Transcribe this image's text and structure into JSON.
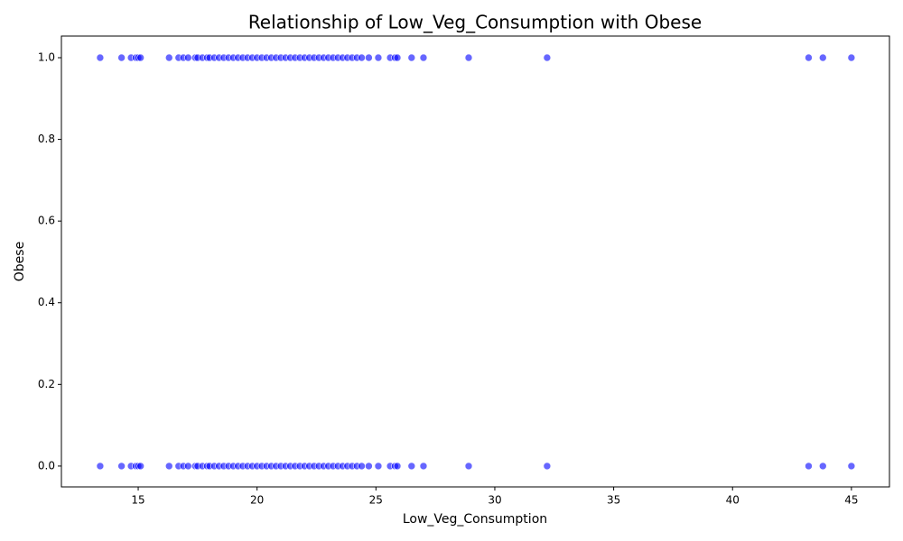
{
  "chart_data": {
    "type": "scatter",
    "title": "Relationship of Low_Veg_Consumption with Obese",
    "x_label": "Low_Veg_Consumption",
    "y_label": "Obese",
    "color": "#0000ff",
    "x": [
      13.4,
      14.3,
      14.7,
      14.9,
      15.0,
      15.1,
      16.3,
      16.7,
      16.9,
      17.1,
      17.4,
      17.5,
      17.7,
      17.9,
      18.0,
      18.2,
      18.4,
      18.6,
      18.8,
      19.0,
      19.2,
      19.4,
      19.6,
      19.8,
      20.0,
      20.2,
      20.4,
      20.6,
      20.8,
      21.0,
      21.2,
      21.4,
      21.6,
      21.8,
      22.0,
      22.2,
      22.4,
      22.6,
      22.8,
      23.0,
      23.2,
      23.4,
      23.6,
      23.8,
      24.0,
      24.2,
      24.4,
      24.7,
      25.1,
      25.6,
      25.8,
      25.9,
      26.5,
      27.0,
      28.9,
      32.2,
      43.2,
      43.8,
      45.0,
      13.4,
      14.3,
      14.7,
      14.9,
      15.0,
      15.1,
      16.3,
      16.7,
      16.9,
      17.1,
      17.4,
      17.5,
      17.7,
      17.9,
      18.0,
      18.2,
      18.4,
      18.6,
      18.8,
      19.0,
      19.2,
      19.4,
      19.6,
      19.8,
      20.0,
      20.2,
      20.4,
      20.6,
      20.8,
      21.0,
      21.2,
      21.4,
      21.6,
      21.8,
      22.0,
      22.2,
      22.4,
      22.6,
      22.8,
      23.0,
      23.2,
      23.4,
      23.6,
      23.8,
      24.0,
      24.2,
      24.4,
      24.7,
      25.1,
      25.6,
      25.8,
      25.9,
      26.5,
      27.0,
      28.9,
      32.2,
      43.2,
      43.8,
      45.0
    ],
    "values": [
      1,
      1,
      1,
      1,
      1,
      1,
      1,
      1,
      1,
      1,
      1,
      1,
      1,
      1,
      1,
      1,
      1,
      1,
      1,
      1,
      1,
      1,
      1,
      1,
      1,
      1,
      1,
      1,
      1,
      1,
      1,
      1,
      1,
      1,
      1,
      1,
      1,
      1,
      1,
      1,
      1,
      1,
      1,
      1,
      1,
      1,
      1,
      1,
      1,
      1,
      1,
      1,
      1,
      1,
      1,
      1,
      1,
      1,
      1,
      0,
      0,
      0,
      0,
      0,
      0,
      0,
      0,
      0,
      0,
      0,
      0,
      0,
      0,
      0,
      0,
      0,
      0,
      0,
      0,
      0,
      0,
      0,
      0,
      0,
      0,
      0,
      0,
      0,
      0,
      0,
      0,
      0,
      0,
      0,
      0,
      0,
      0,
      0,
      0,
      0,
      0,
      0,
      0,
      0,
      0,
      0,
      0,
      0,
      0,
      0,
      0,
      0,
      0,
      0,
      0,
      0,
      0,
      0
    ],
    "xlim": [
      11.77,
      46.6
    ],
    "ylim": [
      -0.051,
      1.053
    ],
    "xticks": [
      15,
      20,
      25,
      30,
      35,
      40,
      45
    ],
    "yticks": [
      {
        "value": 0,
        "label": "0.0"
      },
      {
        "value": 0.2,
        "label": "0.2"
      },
      {
        "value": 0.4,
        "label": "0.4"
      },
      {
        "value": 0.6,
        "label": "0.6"
      },
      {
        "value": 0.8,
        "label": "0.8"
      },
      {
        "value": 1,
        "label": "1.0"
      }
    ]
  }
}
